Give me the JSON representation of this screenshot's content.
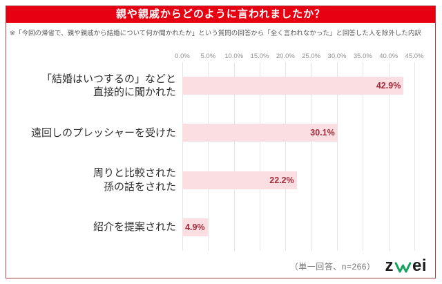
{
  "title": "親や親戚からどのように言われましたか？",
  "note": "※「今回の帰省で、親や親戚から結婚について何か聞かれたか」という質問の回答から「全く言われなかった」と回答した人を除外した内訳",
  "chart_data": {
    "type": "bar",
    "orientation": "horizontal",
    "categories": [
      "「結婚はいつするの」などと\n直接的に聞かれた",
      "遠回しのプレッシャーを受けた",
      "周りと比較された\n孫の話をされた",
      "紹介を提案された"
    ],
    "values": [
      42.9,
      30.1,
      22.2,
      4.9
    ],
    "value_labels": [
      "42.9%",
      "30.1%",
      "22.2%",
      "4.9%"
    ],
    "x_ticks": [
      "0.0%",
      "5.0%",
      "10.0%",
      "15.0%",
      "20.0%",
      "25.0%",
      "30.0%",
      "35.0%",
      "40.0%",
      "45.0%"
    ],
    "xlim": [
      0,
      45
    ],
    "grid": true,
    "legend": false
  },
  "footer": {
    "response_note": "（単一回答、n=266）",
    "logo_name": "zwei",
    "logo_prefix": "z",
    "logo_suffix": "ei"
  },
  "colors": {
    "banner": "#e60012",
    "bar": "#fbdee1",
    "value_label": "#a02c3c",
    "frame_border": "#a2454a",
    "logo_green": "#12a15e"
  }
}
